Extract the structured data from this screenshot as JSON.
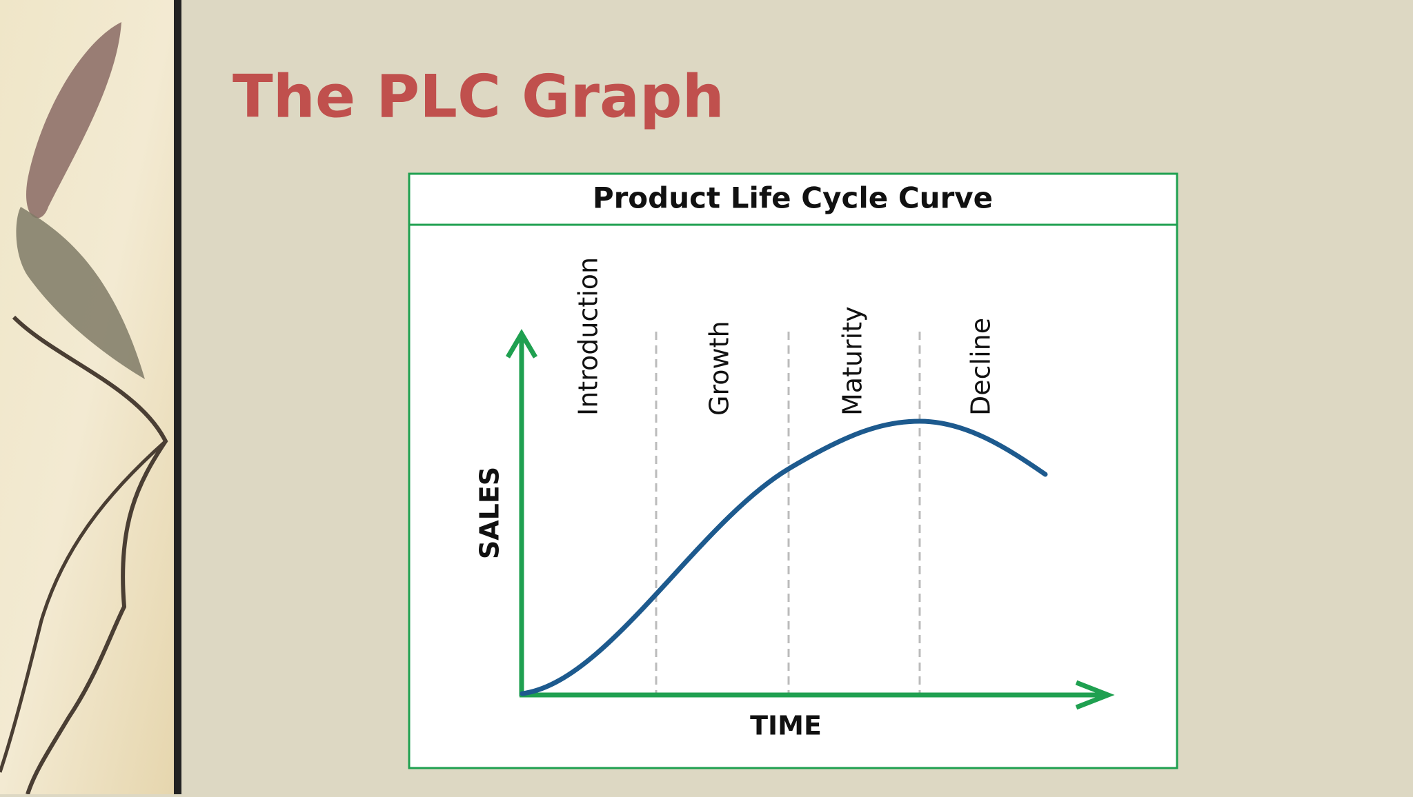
{
  "slide": {
    "title": "The PLC Graph"
  },
  "diagram": {
    "title": "Product Life Cycle Curve",
    "stages": [
      "Introduction",
      "Growth",
      "Maturity",
      "Decline"
    ],
    "y_axis_label": "SALES",
    "x_axis_label": "TIME"
  }
}
